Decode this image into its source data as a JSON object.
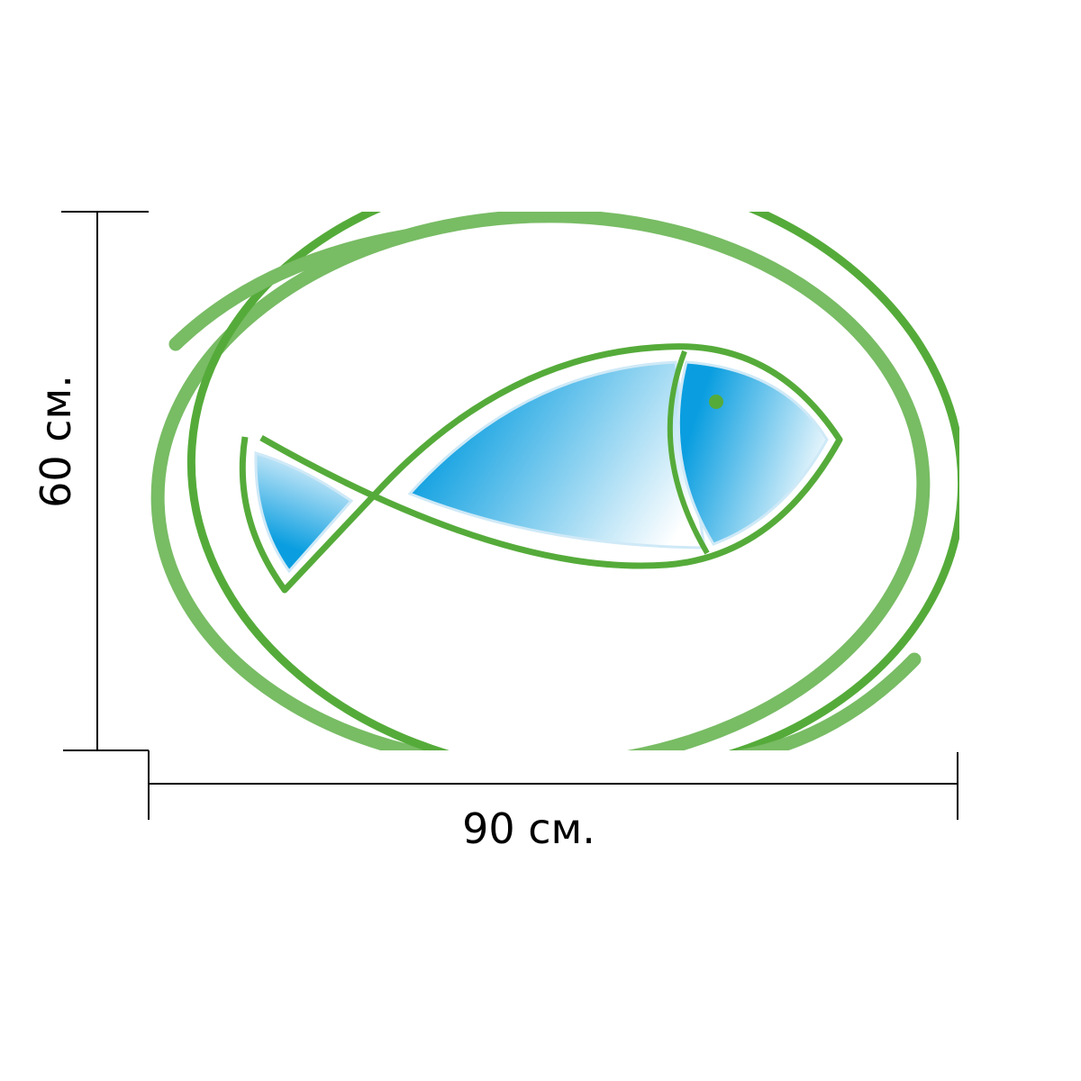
{
  "dimensions": {
    "width": "90 см.",
    "height": "60 см."
  }
}
